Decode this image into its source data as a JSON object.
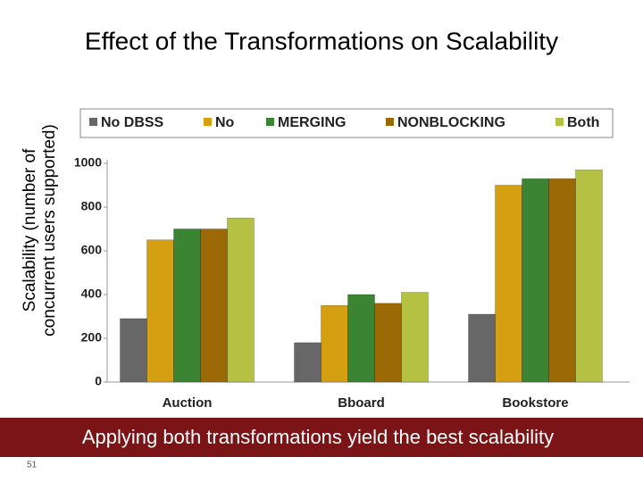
{
  "chart_data": {
    "type": "bar",
    "title": "Effect of the Transformations on Scalability",
    "ylabel": [
      "Scalability (number of",
      "concurrent users supported)"
    ],
    "categories": [
      "Auction",
      "Bboard",
      "Bookstore"
    ],
    "series": [
      {
        "name": "No DBSS",
        "color": "#676767",
        "values": [
          290,
          180,
          310
        ]
      },
      {
        "name": "No",
        "color": "#d4a012",
        "values": [
          650,
          350,
          900
        ]
      },
      {
        "name": "MERGING",
        "color": "#3b8434",
        "values": [
          700,
          400,
          930
        ]
      },
      {
        "name": "NONBLOCKING",
        "color": "#9b6a06",
        "values": [
          700,
          360,
          930
        ]
      },
      {
        "name": "Both",
        "color": "#b4c142",
        "values": [
          750,
          410,
          970
        ]
      }
    ],
    "ylim": [
      0,
      1000
    ],
    "yticks": [
      0,
      200,
      400,
      600,
      800,
      1000
    ],
    "grid": false,
    "legend": "top"
  },
  "banner": "Applying both transformations yield the best scalability",
  "page_number": "51"
}
